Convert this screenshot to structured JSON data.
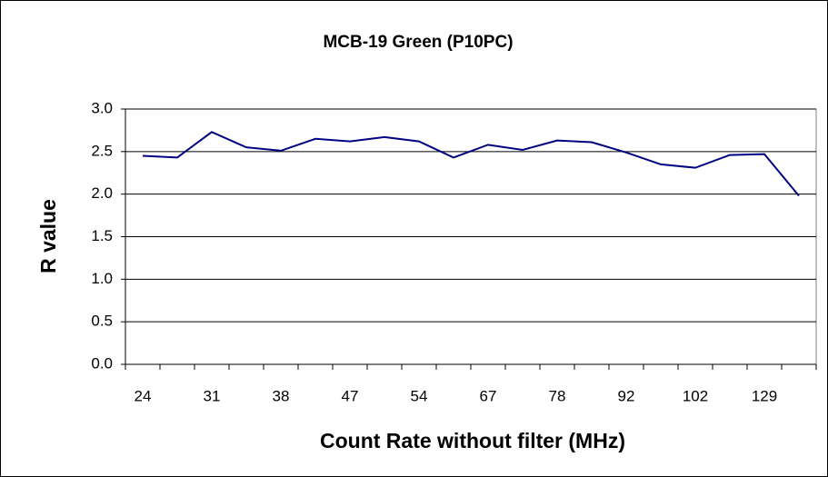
{
  "chart_data": {
    "type": "line",
    "title": "MCB-19 Green (P10PC)",
    "x_label": "Count Rate without filter (MHz)",
    "y_label": "R value",
    "categories": [
      "24",
      null,
      "31",
      null,
      "38",
      null,
      "47",
      null,
      "54",
      null,
      "67",
      null,
      "78",
      null,
      "92",
      null,
      "102",
      null,
      "129",
      null
    ],
    "series": [
      {
        "name": "R value",
        "color": "#000080",
        "values": [
          2.45,
          2.43,
          2.73,
          2.55,
          2.51,
          2.65,
          2.62,
          2.67,
          2.62,
          2.43,
          2.58,
          2.52,
          2.63,
          2.61,
          2.49,
          2.35,
          2.31,
          2.46,
          2.47,
          1.98
        ]
      }
    ],
    "ylim": [
      0,
      3
    ],
    "yticks": [
      {
        "value": 0,
        "label": "0.0"
      },
      {
        "value": 0.5,
        "label": "0.5"
      },
      {
        "value": 1,
        "label": "1.0"
      },
      {
        "value": 1.5,
        "label": "1.5"
      },
      {
        "value": 2,
        "label": "2.0"
      },
      {
        "value": 2.5,
        "label": "2.5"
      },
      {
        "value": 3,
        "label": "3.0"
      }
    ],
    "grid": true
  }
}
